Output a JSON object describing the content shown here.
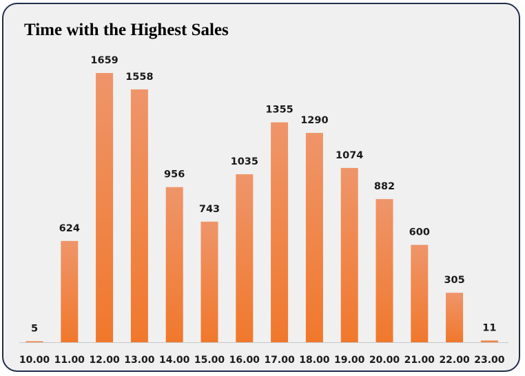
{
  "chart_data": {
    "type": "bar",
    "title": "Time with the Highest Sales",
    "categories": [
      "10.00",
      "11.00",
      "12.00",
      "13.00",
      "14.00",
      "15.00",
      "16.00",
      "17.00",
      "18.00",
      "19.00",
      "20.00",
      "21.00",
      "22.00",
      "23.00"
    ],
    "values": [
      5,
      624,
      1659,
      1558,
      956,
      743,
      1035,
      1355,
      1290,
      1074,
      882,
      600,
      305,
      11
    ],
    "ylim": [
      0,
      1659
    ],
    "grid": false,
    "data_labels": true,
    "colors": {
      "bar_top": "#ef956a",
      "bar_bottom": "#f0782c",
      "axis": "#c8c8c8",
      "border": "#1f2c4c",
      "background": "#f0f0f0"
    }
  }
}
